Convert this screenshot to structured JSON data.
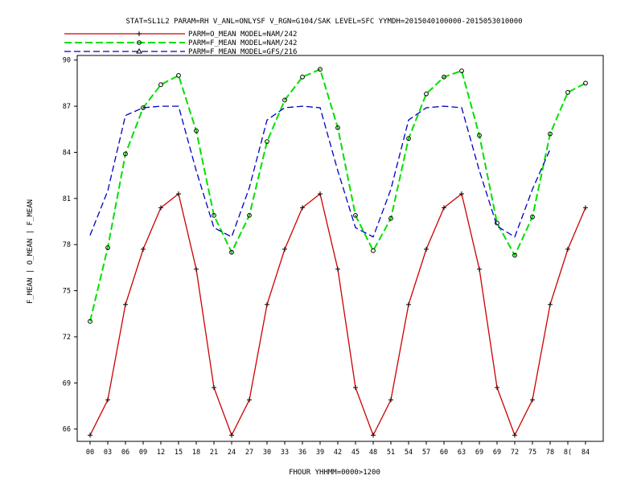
{
  "chart_data": {
    "type": "line",
    "title": "STAT=SL1L2 PARAM=RH V_ANL=ONLYSF V_RGN=G104/SAK LEVEL=SFC YYMDH=2015040100000-2015053010000",
    "xlabel": "FHOUR YHHMM=0000>1200",
    "ylabel": "F_MEAN | O_MEAN | F_MEAN",
    "categories": [
      "00",
      "03",
      "06",
      "09",
      "12",
      "15",
      "18",
      "21",
      "24",
      "27",
      "30",
      "33",
      "36",
      "39",
      "42",
      "45",
      "48",
      "51",
      "54",
      "57",
      "60",
      "63",
      "69",
      "69",
      "72",
      "75",
      "78",
      "8(",
      "84"
    ],
    "yticks": [
      66,
      69,
      72,
      75,
      78,
      81,
      84,
      87,
      90
    ],
    "ylim": [
      65.2,
      90.3
    ],
    "series": [
      {
        "name": "PARM=O_MEAN MODEL=NAM/242",
        "color": "#cc0000",
        "dash": "solid",
        "marker": "plus",
        "values": [
          65.6,
          67.9,
          74.1,
          77.7,
          80.4,
          81.3,
          76.4,
          68.7,
          65.6,
          67.9,
          74.1,
          77.7,
          80.4,
          81.3,
          76.4,
          68.7,
          65.6,
          67.9,
          74.1,
          77.7,
          80.4,
          81.3,
          76.4,
          68.7,
          65.6,
          67.9,
          74.1,
          77.7,
          80.4
        ]
      },
      {
        "name": "PARM=F_MEAN MODEL=NAM/242",
        "color": "#00e000",
        "dash": "long",
        "marker": "circle",
        "values": [
          73.0,
          77.8,
          83.9,
          86.9,
          88.4,
          89.0,
          85.4,
          79.9,
          77.5,
          79.9,
          84.7,
          87.4,
          88.9,
          89.4,
          85.6,
          79.9,
          77.6,
          79.7,
          84.9,
          87.8,
          88.9,
          89.3,
          85.1,
          79.4,
          77.3,
          79.8,
          85.2,
          87.9,
          88.5
        ]
      },
      {
        "name": "PARM=F_MEAN MODEL=GFS/216",
        "color": "#0000c0",
        "dash": "medium",
        "marker": "triangle",
        "values": [
          78.6,
          81.5,
          86.4,
          86.9,
          87.0,
          87.0,
          82.8,
          79.1,
          78.5,
          81.7,
          86.1,
          86.9,
          87.0,
          86.9,
          82.8,
          79.1,
          78.5,
          81.6,
          86.1,
          86.9,
          87.0,
          86.9,
          82.8,
          79.2,
          78.5,
          81.6,
          84.2,
          null,
          null
        ]
      }
    ]
  }
}
